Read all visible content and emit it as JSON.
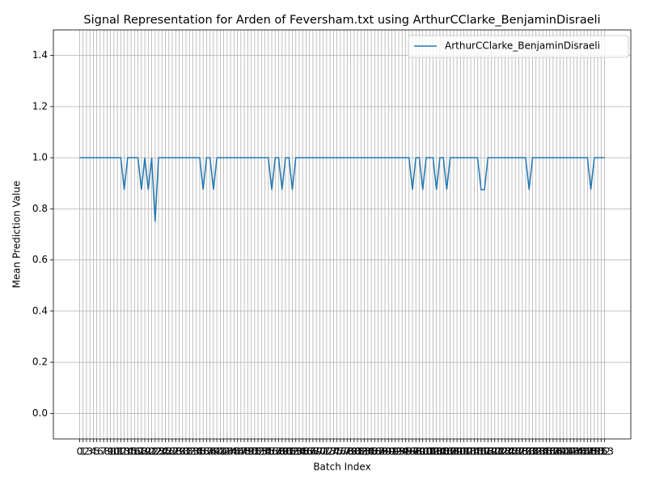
{
  "chart_data": {
    "type": "line",
    "title": "Signal Representation for Arden of Feversham.txt using ArthurCClarke_BenjaminDisraeli",
    "xlabel": "Batch Index",
    "ylabel": "Mean Prediction Value",
    "x": [
      0,
      1,
      2,
      3,
      4,
      5,
      6,
      7,
      8,
      9,
      10,
      11,
      12,
      13,
      14,
      15,
      16,
      17,
      18,
      19,
      20,
      21,
      22,
      23,
      24,
      25,
      26,
      27,
      28,
      29,
      30,
      31,
      32,
      33,
      34,
      35,
      36,
      37,
      38,
      39,
      40,
      41,
      42,
      43,
      44,
      45,
      46,
      47,
      48,
      49,
      50,
      51,
      52,
      53,
      54,
      55,
      56,
      57,
      58,
      59,
      60,
      61,
      62,
      63,
      64,
      65,
      66,
      67,
      68,
      69,
      70,
      71,
      72,
      73,
      74,
      75,
      76,
      77,
      78,
      79,
      80,
      81,
      82,
      83,
      84,
      85,
      86,
      87,
      88,
      89,
      90,
      91,
      92,
      93,
      94,
      95,
      96,
      97,
      98,
      99,
      100,
      101,
      102,
      103,
      104,
      105,
      106,
      107,
      108,
      109,
      110,
      111,
      112,
      113,
      114,
      115,
      116,
      117,
      118,
      119,
      120,
      121,
      122,
      123,
      124,
      125,
      126,
      127,
      128,
      129,
      130,
      131,
      132,
      133,
      134,
      135,
      136,
      137,
      138,
      139,
      140,
      141,
      142,
      143,
      144,
      145,
      146,
      147,
      148,
      149,
      150,
      151,
      152,
      153
    ],
    "series": [
      {
        "name": "ArthurCClarke_BenjaminDisraeli",
        "color": "#1f77b4",
        "values": [
          1,
          1,
          1,
          1,
          1,
          1,
          1,
          1,
          1,
          1,
          1,
          1,
          1,
          0.875,
          1,
          1,
          1,
          1,
          0.875,
          1,
          0.875,
          1,
          0.75,
          1,
          1,
          1,
          1,
          1,
          1,
          1,
          1,
          1,
          1,
          1,
          1,
          1,
          0.875,
          1,
          1,
          0.875,
          1,
          1,
          1,
          1,
          1,
          1,
          1,
          1,
          1,
          1,
          1,
          1,
          1,
          1,
          1,
          1,
          0.875,
          1,
          1,
          0.875,
          1,
          1,
          0.875,
          1,
          1,
          1,
          1,
          1,
          1,
          1,
          1,
          1,
          1,
          1,
          1,
          1,
          1,
          1,
          1,
          1,
          1,
          1,
          1,
          1,
          1,
          1,
          1,
          1,
          1,
          1,
          1,
          1,
          1,
          1,
          1,
          1,
          1,
          0.875,
          1,
          1,
          0.875,
          1,
          1,
          1,
          0.875,
          1,
          1,
          0.875,
          1,
          1,
          1,
          1,
          1,
          1,
          1,
          1,
          1,
          0.875,
          0.875,
          1,
          1,
          1,
          1,
          1,
          1,
          1,
          1,
          1,
          1,
          1,
          1,
          0.875,
          1,
          1,
          1,
          1,
          1,
          1,
          1,
          1,
          1,
          1,
          1,
          1,
          1,
          1,
          1,
          1,
          1,
          0.875,
          1,
          1,
          1,
          1
        ]
      }
    ],
    "xlim": [
      -7.65,
      160.65
    ],
    "xticks": [
      0,
      1,
      2,
      3,
      4,
      5,
      6,
      7,
      8,
      9,
      10,
      11,
      12,
      13,
      14,
      15,
      16,
      17,
      18,
      19,
      20,
      21,
      22,
      23,
      24,
      25,
      26,
      27,
      28,
      29,
      30,
      31,
      32,
      33,
      34,
      35,
      36,
      37,
      38,
      39,
      40,
      41,
      42,
      43,
      44,
      45,
      46,
      47,
      48,
      49,
      50,
      51,
      52,
      53,
      54,
      55,
      56,
      57,
      58,
      59,
      60,
      61,
      62,
      63,
      64,
      65,
      66,
      67,
      68,
      69,
      70,
      71,
      72,
      73,
      74,
      75,
      76,
      77,
      78,
      79,
      80,
      81,
      82,
      83,
      84,
      85,
      86,
      87,
      88,
      89,
      90,
      91,
      92,
      93,
      94,
      95,
      96,
      97,
      98,
      99,
      100,
      101,
      102,
      103,
      104,
      105,
      106,
      107,
      108,
      109,
      110,
      111,
      112,
      113,
      114,
      115,
      116,
      117,
      118,
      119,
      120,
      121,
      122,
      123,
      124,
      125,
      126,
      127,
      128,
      129,
      130,
      131,
      132,
      133,
      134,
      135,
      136,
      137,
      138,
      139,
      140,
      141,
      142,
      143,
      144,
      145,
      146,
      147,
      148,
      149,
      150,
      151,
      152,
      153
    ],
    "ylim": [
      -0.1,
      1.5
    ],
    "yticks": [
      {
        "value": 0,
        "label": "0.0"
      },
      {
        "value": 0.2,
        "label": "0.2"
      },
      {
        "value": 0.4,
        "label": "0.4"
      },
      {
        "value": 0.6,
        "label": "0.6"
      },
      {
        "value": 0.8,
        "label": "0.8"
      },
      {
        "value": 1,
        "label": "1.0"
      },
      {
        "value": 1.2,
        "label": "1.2"
      },
      {
        "value": 1.4,
        "label": "1.4"
      }
    ],
    "grid": true,
    "legend": "upper right"
  }
}
